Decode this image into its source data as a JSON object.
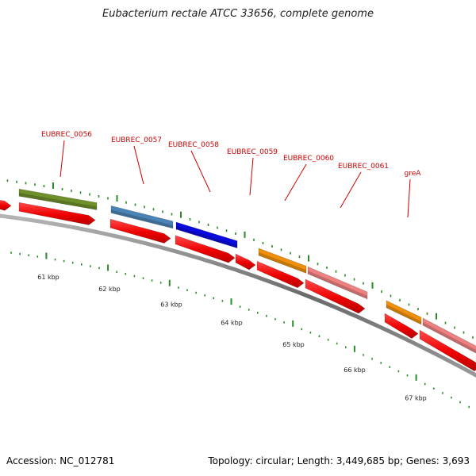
{
  "header": {
    "title": "Eubacterium rectale ATCC 33656, complete genome"
  },
  "footer": {
    "accession": "Accession: NC_012781",
    "summary": "Topology: circular; Length: 3,449,685 bp; Genes: 3,693"
  },
  "colors": {
    "cds": "#ee1111",
    "label": "#cc0000",
    "tick": "#2a8a2a",
    "backbone": "#777777"
  },
  "genes": [
    {
      "label": "EUBREC_0056",
      "color": "#6e8f2a"
    },
    {
      "label": "EUBREC_0057",
      "color": "#4a83b5"
    },
    {
      "label": "EUBREC_0058",
      "color": "#0a0ae0"
    },
    {
      "label": "EUBREC_0059",
      "color": ""
    },
    {
      "label": "EUBREC_0060",
      "color": "#f0900a"
    },
    {
      "label": "EUBREC_0061",
      "color": "#ef8080"
    },
    {
      "label": "greA",
      "color": "#f0900a"
    }
  ],
  "kbp_labels": [
    "61 kbp",
    "62 kbp",
    "63 kbp",
    "64 kbp",
    "65 kbp",
    "66 kbp",
    "67 kbp"
  ]
}
